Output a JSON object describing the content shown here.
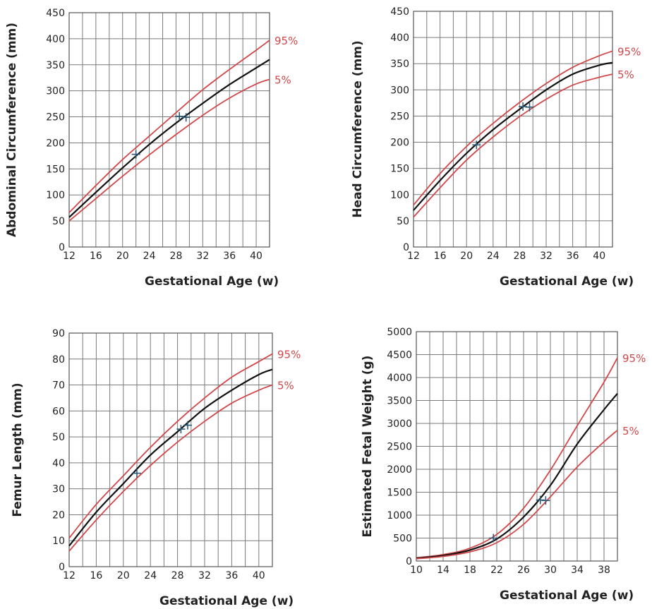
{
  "colors": {
    "median": "#111111",
    "percentile": "#d0484a",
    "grid": "#7a7a7a",
    "marker": "#2d5a78"
  },
  "chart_data": [
    {
      "type": "line",
      "id": "ac",
      "xlabel": "Gestational Age (w)",
      "ylabel": "Abdominal Circumference (mm)",
      "xlim": [
        12,
        42
      ],
      "ylim": [
        0,
        450
      ],
      "xticks": [
        12,
        16,
        20,
        24,
        28,
        32,
        36,
        40
      ],
      "yticks": [
        0,
        50,
        100,
        150,
        200,
        250,
        300,
        350,
        400,
        450
      ],
      "grid": true,
      "series": [
        {
          "name": "95%",
          "role": "p95",
          "x": [
            12,
            16,
            20,
            24,
            28,
            32,
            36,
            40,
            42
          ],
          "y": [
            66,
            118,
            168,
            213,
            258,
            302,
            341,
            378,
            397
          ]
        },
        {
          "role": "p50",
          "x": [
            12,
            16,
            20,
            24,
            28,
            32,
            36,
            40,
            42
          ],
          "y": [
            57,
            105,
            152,
            197,
            238,
            276,
            312,
            344,
            360
          ]
        },
        {
          "name": "5%",
          "role": "p05",
          "x": [
            12,
            16,
            20,
            24,
            28,
            32,
            36,
            40,
            42
          ],
          "y": [
            50,
            93,
            136,
            177,
            216,
            253,
            286,
            313,
            322
          ]
        }
      ],
      "markers": [
        {
          "x": 22,
          "y": 178
        },
        {
          "x": 28.5,
          "y": 251
        },
        {
          "x": 29.5,
          "y": 249
        }
      ]
    },
    {
      "type": "line",
      "id": "hc",
      "xlabel": "Gestational Age (w)",
      "ylabel": "Head Circumference (mm)",
      "xlim": [
        12,
        42
      ],
      "ylim": [
        0,
        450
      ],
      "xticks": [
        12,
        16,
        20,
        24,
        28,
        32,
        36,
        40
      ],
      "yticks": [
        0,
        50,
        100,
        150,
        200,
        250,
        300,
        350,
        400,
        450
      ],
      "grid": true,
      "series": [
        {
          "name": "95%",
          "role": "p95",
          "x": [
            12,
            16,
            20,
            24,
            28,
            32,
            36,
            40,
            42
          ],
          "y": [
            80,
            140,
            192,
            236,
            276,
            312,
            343,
            365,
            374
          ]
        },
        {
          "role": "p50",
          "x": [
            12,
            16,
            20,
            24,
            28,
            32,
            36,
            40,
            42
          ],
          "y": [
            70,
            127,
            179,
            224,
            263,
            300,
            330,
            347,
            352
          ]
        },
        {
          "name": "5%",
          "role": "p05",
          "x": [
            12,
            16,
            20,
            24,
            28,
            32,
            36,
            40,
            42
          ],
          "y": [
            57,
            113,
            166,
            210,
            249,
            282,
            309,
            324,
            330
          ]
        }
      ],
      "markers": [
        {
          "x": 21.5,
          "y": 195
        },
        {
          "x": 28.5,
          "y": 268
        },
        {
          "x": 29.5,
          "y": 267
        }
      ]
    },
    {
      "type": "line",
      "id": "fl",
      "xlabel": "Gestational Age (w)",
      "ylabel": "Femur Length (mm)",
      "xlim": [
        12,
        42
      ],
      "ylim": [
        0,
        90
      ],
      "xticks": [
        12,
        16,
        20,
        24,
        28,
        32,
        36,
        40
      ],
      "yticks": [
        0,
        10,
        20,
        30,
        40,
        50,
        60,
        70,
        80,
        90
      ],
      "grid": true,
      "series": [
        {
          "name": "95%",
          "role": "p95",
          "x": [
            12,
            16,
            20,
            24,
            28,
            32,
            36,
            40,
            42
          ],
          "y": [
            11,
            24,
            35,
            46,
            56,
            65,
            73,
            79,
            82
          ]
        },
        {
          "role": "p50",
          "x": [
            12,
            16,
            20,
            24,
            28,
            32,
            36,
            40,
            42
          ],
          "y": [
            8,
            21,
            32,
            43,
            52,
            61,
            68,
            74,
            76
          ]
        },
        {
          "name": "5%",
          "role": "p05",
          "x": [
            12,
            16,
            20,
            24,
            28,
            32,
            36,
            40,
            42
          ],
          "y": [
            6,
            18,
            29,
            39,
            48,
            56,
            63,
            68,
            70
          ]
        }
      ],
      "markers": [
        {
          "x": 22,
          "y": 36
        },
        {
          "x": 28.5,
          "y": 53
        },
        {
          "x": 29.5,
          "y": 54.5
        }
      ]
    },
    {
      "type": "line",
      "id": "efw",
      "xlabel": "Gestational Age (w)",
      "ylabel": "Estimated Fetal Weight (g)",
      "xlim": [
        10,
        40
      ],
      "ylim": [
        0,
        5000
      ],
      "xticks": [
        10,
        14,
        18,
        22,
        26,
        30,
        34,
        38
      ],
      "yticks": [
        0,
        500,
        1000,
        1500,
        2000,
        2500,
        3000,
        3500,
        4000,
        4500,
        5000
      ],
      "grid": true,
      "series": [
        {
          "name": "95%",
          "role": "p95",
          "x": [
            10,
            14,
            18,
            22,
            26,
            30,
            34,
            38,
            40
          ],
          "y": [
            70,
            140,
            280,
            580,
            1150,
            1980,
            2950,
            3900,
            4430
          ]
        },
        {
          "role": "p50",
          "x": [
            10,
            14,
            18,
            22,
            26,
            30,
            34,
            38,
            40
          ],
          "y": [
            60,
            120,
            240,
            480,
            960,
            1650,
            2550,
            3300,
            3650
          ]
        },
        {
          "name": "5%",
          "role": "p05",
          "x": [
            10,
            14,
            18,
            22,
            26,
            30,
            34,
            38,
            40
          ],
          "y": [
            50,
            100,
            200,
            400,
            800,
            1400,
            2050,
            2600,
            2850
          ]
        }
      ],
      "markers": [
        {
          "x": 21.5,
          "y": 500
        },
        {
          "x": 28.5,
          "y": 1330
        },
        {
          "x": 29.3,
          "y": 1320
        }
      ]
    }
  ]
}
